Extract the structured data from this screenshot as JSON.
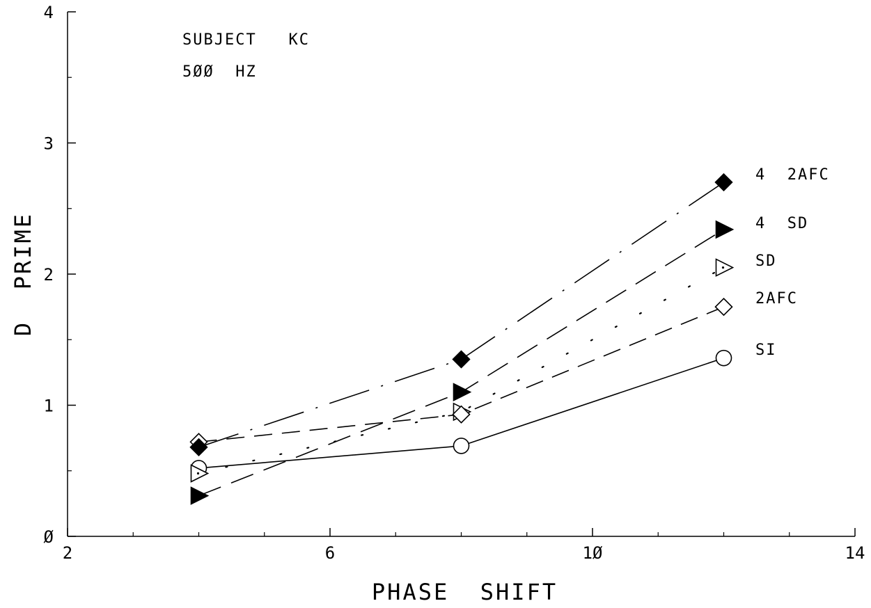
{
  "chart_data": {
    "type": "line",
    "xlabel": "PHASE  SHIFT",
    "ylabel": "D  PRIME",
    "xlim": [
      2,
      14
    ],
    "ylim": [
      0,
      4
    ],
    "x_ticks": [
      2,
      6,
      10,
      14
    ],
    "x_tick_labels": [
      "2",
      "6",
      "1Ø",
      "14"
    ],
    "y_ticks": [
      0,
      1,
      2,
      3,
      4
    ],
    "y_tick_labels": [
      "Ø",
      "1",
      "2",
      "3",
      "4"
    ],
    "grid": false,
    "legend": "labels at right end of each series",
    "annotations": [
      "SUBJECT   KC",
      "5ØØ  HZ"
    ],
    "x": [
      4,
      8,
      12
    ],
    "series": [
      {
        "name": "4  2AFC",
        "values": [
          0.68,
          1.35,
          2.7
        ],
        "marker": "filled-diamond",
        "line": "dashdot"
      },
      {
        "name": "4  SD",
        "values": [
          0.31,
          1.1,
          2.34
        ],
        "marker": "filled-right-triangle",
        "line": "longdash"
      },
      {
        "name": "SD",
        "values": [
          0.48,
          0.95,
          2.05
        ],
        "marker": "open-right-triangle-dot",
        "line": "dotted"
      },
      {
        "name": "2AFC",
        "values": [
          0.72,
          0.93,
          1.75
        ],
        "marker": "open-diamond",
        "line": "dashed"
      },
      {
        "name": "SI",
        "values": [
          0.52,
          0.69,
          1.36
        ],
        "marker": "open-circle",
        "line": "solid"
      }
    ]
  }
}
